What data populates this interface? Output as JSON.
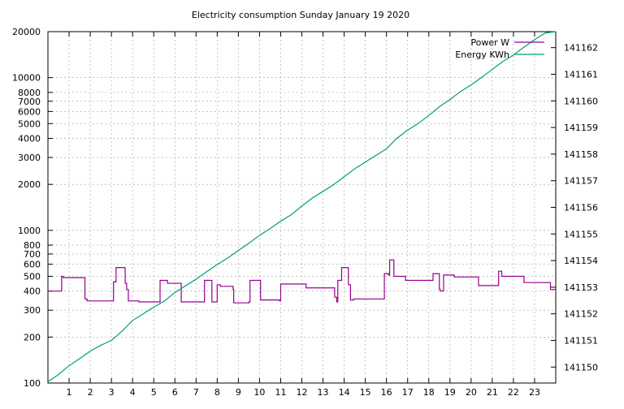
{
  "chart_data": {
    "type": "line",
    "title": "Electricity consumption Sunday January 19 2020",
    "x_ticks": [
      "1",
      "2",
      "3",
      "4",
      "5",
      "6",
      "7",
      "8",
      "9",
      "10",
      "11",
      "12",
      "13",
      "14",
      "15",
      "16",
      "17",
      "18",
      "19",
      "20",
      "21",
      "22",
      "23"
    ],
    "xlim": [
      0,
      24
    ],
    "grid": true,
    "legend_placement": "top-right",
    "y_left": {
      "scale": "log",
      "ylim": [
        100,
        20000
      ],
      "ticks": [
        100,
        200,
        300,
        400,
        500,
        600,
        700,
        800,
        1000,
        2000,
        3000,
        4000,
        5000,
        6000,
        7000,
        8000,
        10000,
        20000
      ]
    },
    "y_right": {
      "scale": "linear",
      "ylim": [
        141149.4,
        141162.6
      ],
      "ticks": [
        141150,
        141151,
        141152,
        141153,
        141154,
        141155,
        141156,
        141157,
        141158,
        141159,
        141160,
        141161,
        141162
      ]
    },
    "series": [
      {
        "name": "Power W",
        "axis": "left",
        "color": "#94008f",
        "step": true,
        "points": [
          [
            0,
            400
          ],
          [
            0.65,
            400
          ],
          [
            0.65,
            500
          ],
          [
            0.72,
            500
          ],
          [
            0.72,
            490
          ],
          [
            1.75,
            490
          ],
          [
            1.75,
            355
          ],
          [
            1.85,
            355
          ],
          [
            1.85,
            345
          ],
          [
            3.1,
            345
          ],
          [
            3.1,
            460
          ],
          [
            3.22,
            460
          ],
          [
            3.22,
            570
          ],
          [
            3.65,
            570
          ],
          [
            3.65,
            450
          ],
          [
            3.72,
            450
          ],
          [
            3.72,
            410
          ],
          [
            3.8,
            410
          ],
          [
            3.8,
            345
          ],
          [
            4.3,
            345
          ],
          [
            4.3,
            340
          ],
          [
            5.3,
            340
          ],
          [
            5.3,
            470
          ],
          [
            5.65,
            470
          ],
          [
            5.65,
            450
          ],
          [
            6.3,
            450
          ],
          [
            6.3,
            340
          ],
          [
            7.4,
            340
          ],
          [
            7.4,
            470
          ],
          [
            7.75,
            470
          ],
          [
            7.75,
            340
          ],
          [
            8.0,
            340
          ],
          [
            8.0,
            440
          ],
          [
            8.15,
            440
          ],
          [
            8.15,
            430
          ],
          [
            8.75,
            430
          ],
          [
            8.75,
            410
          ],
          [
            8.78,
            410
          ],
          [
            8.78,
            335
          ],
          [
            9.5,
            335
          ],
          [
            9.5,
            340
          ],
          [
            9.55,
            340
          ],
          [
            9.55,
            470
          ],
          [
            10.05,
            470
          ],
          [
            10.05,
            350
          ],
          [
            10.95,
            350
          ],
          [
            10.95,
            345
          ],
          [
            11.0,
            345
          ],
          [
            11.0,
            445
          ],
          [
            12.2,
            445
          ],
          [
            12.2,
            420
          ],
          [
            13.55,
            420
          ],
          [
            13.55,
            365
          ],
          [
            13.65,
            365
          ],
          [
            13.65,
            340
          ],
          [
            13.7,
            340
          ],
          [
            13.7,
            470
          ],
          [
            13.88,
            470
          ],
          [
            13.88,
            570
          ],
          [
            14.2,
            570
          ],
          [
            14.2,
            440
          ],
          [
            14.3,
            440
          ],
          [
            14.3,
            350
          ],
          [
            14.45,
            350
          ],
          [
            14.45,
            355
          ],
          [
            15.9,
            355
          ],
          [
            15.9,
            520
          ],
          [
            16.1,
            520
          ],
          [
            16.1,
            510
          ],
          [
            16.15,
            510
          ],
          [
            16.15,
            640
          ],
          [
            16.35,
            640
          ],
          [
            16.35,
            500
          ],
          [
            16.9,
            500
          ],
          [
            16.9,
            470
          ],
          [
            18.2,
            470
          ],
          [
            18.2,
            520
          ],
          [
            18.5,
            520
          ],
          [
            18.5,
            410
          ],
          [
            18.55,
            410
          ],
          [
            18.55,
            400
          ],
          [
            18.7,
            400
          ],
          [
            18.7,
            510
          ],
          [
            19.2,
            510
          ],
          [
            19.2,
            495
          ],
          [
            20.35,
            495
          ],
          [
            20.35,
            435
          ],
          [
            21.3,
            435
          ],
          [
            21.3,
            540
          ],
          [
            21.45,
            540
          ],
          [
            21.45,
            500
          ],
          [
            22.5,
            500
          ],
          [
            22.5,
            455
          ],
          [
            23.75,
            455
          ],
          [
            23.75,
            410
          ],
          [
            24,
            410
          ]
        ]
      },
      {
        "name": "Energy KWh",
        "axis": "right",
        "color": "#009e73",
        "step": false,
        "points": [
          [
            0,
            141149.45
          ],
          [
            0.5,
            141149.72
          ],
          [
            1,
            141150.05
          ],
          [
            1.5,
            141150.32
          ],
          [
            2,
            141150.6
          ],
          [
            2.5,
            141150.82
          ],
          [
            3,
            141151.0
          ],
          [
            3.5,
            141151.35
          ],
          [
            4,
            141151.75
          ],
          [
            4.5,
            141152.0
          ],
          [
            5,
            141152.25
          ],
          [
            5.5,
            141152.48
          ],
          [
            6,
            141152.8
          ],
          [
            6.5,
            141153.05
          ],
          [
            7,
            141153.3
          ],
          [
            7.5,
            141153.58
          ],
          [
            8,
            141153.85
          ],
          [
            8.5,
            141154.1
          ],
          [
            9,
            141154.38
          ],
          [
            9.5,
            141154.65
          ],
          [
            10,
            141154.95
          ],
          [
            10.5,
            141155.2
          ],
          [
            11,
            141155.48
          ],
          [
            11.5,
            141155.72
          ],
          [
            12,
            141156.05
          ],
          [
            12.5,
            141156.35
          ],
          [
            13,
            141156.6
          ],
          [
            13.5,
            141156.85
          ],
          [
            14,
            141157.15
          ],
          [
            14.5,
            141157.45
          ],
          [
            15,
            141157.7
          ],
          [
            15.5,
            141157.95
          ],
          [
            16,
            141158.2
          ],
          [
            16.5,
            141158.6
          ],
          [
            17,
            141158.9
          ],
          [
            17.5,
            141159.15
          ],
          [
            18,
            141159.45
          ],
          [
            18.5,
            141159.78
          ],
          [
            19,
            141160.05
          ],
          [
            19.5,
            141160.35
          ],
          [
            20,
            141160.6
          ],
          [
            20.5,
            141160.88
          ],
          [
            21,
            141161.18
          ],
          [
            21.5,
            141161.48
          ],
          [
            22,
            141161.72
          ],
          [
            22.5,
            141162.02
          ],
          [
            23,
            141162.3
          ],
          [
            23.5,
            141162.55
          ],
          [
            24,
            141162.6
          ]
        ]
      }
    ]
  }
}
